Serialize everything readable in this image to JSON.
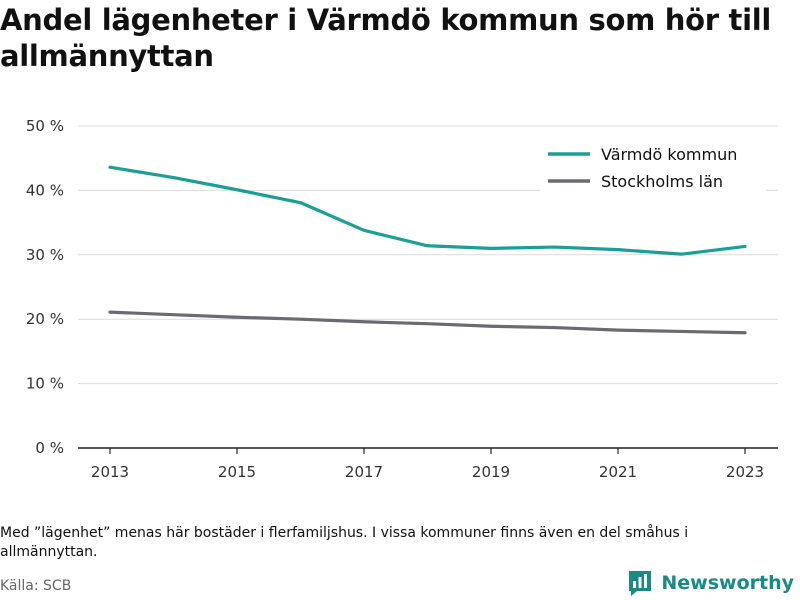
{
  "header": {
    "title": "Andel lägenheter i Värmdö kommun som hör till allmännyttan"
  },
  "chart_data": {
    "type": "line",
    "title": "Andel lägenheter i Värmdö kommun som hör till allmännyttan",
    "xlabel": "",
    "ylabel": "",
    "x": [
      2013,
      2014,
      2015,
      2016,
      2017,
      2018,
      2019,
      2020,
      2021,
      2022,
      2023
    ],
    "x_ticks": [
      "2013",
      "2015",
      "2017",
      "2019",
      "2021",
      "2023"
    ],
    "y_ticks": [
      "0 %",
      "10 %",
      "20 %",
      "30 %",
      "40 %",
      "50 %"
    ],
    "ylim": [
      0,
      50
    ],
    "grid": true,
    "legend": "top-right",
    "series": [
      {
        "name": "Värmdö kommun",
        "color": "#1a9e96",
        "values": [
          43.6,
          42.0,
          40.1,
          38.1,
          33.8,
          31.4,
          31.0,
          31.2,
          30.8,
          30.1,
          31.3
        ]
      },
      {
        "name": "Stockholms län",
        "color": "#6b6a70",
        "values": [
          21.1,
          20.7,
          20.3,
          20.0,
          19.6,
          19.3,
          18.9,
          18.7,
          18.3,
          18.1,
          17.9
        ]
      }
    ]
  },
  "footer": {
    "note": "Med ”lägenhet” menas här bostäder i flerfamiljshus. I vissa kommuner finns även en del småhus i allmännyttan.",
    "source": "Källa: SCB",
    "brand": "Newsworthy",
    "brand_icon": "bar-chart-logo-icon",
    "brand_color": "#1a8a84"
  }
}
